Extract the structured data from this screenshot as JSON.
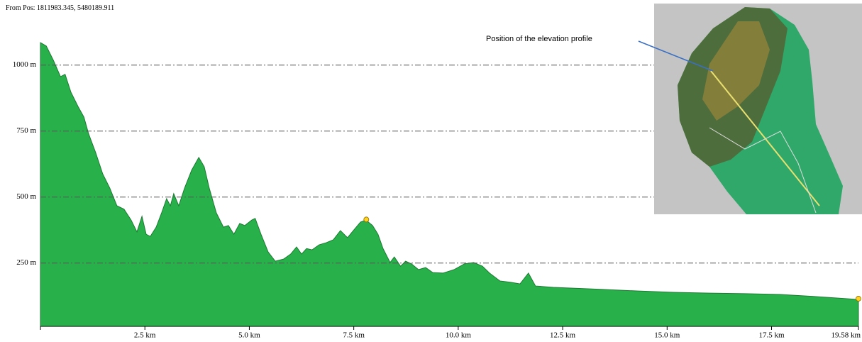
{
  "chart_data": {
    "type": "area",
    "title": "From Pos: 1811983.345, 5480189.911",
    "inset_label": "Position of the elevation profile",
    "color": "#28b04a",
    "x": [
      0,
      0.14,
      0.31,
      0.48,
      0.59,
      0.73,
      0.9,
      1.04,
      1.15,
      1.32,
      1.49,
      1.66,
      1.83,
      2.0,
      2.17,
      2.31,
      2.43,
      2.53,
      2.63,
      2.77,
      2.9,
      3.02,
      3.11,
      3.19,
      3.31,
      3.45,
      3.62,
      3.79,
      3.92,
      4.04,
      4.21,
      4.38,
      4.5,
      4.63,
      4.77,
      4.89,
      5.06,
      5.14,
      5.28,
      5.45,
      5.62,
      5.82,
      5.99,
      6.13,
      6.25,
      6.37,
      6.5,
      6.67,
      6.84,
      7.01,
      7.18,
      7.35,
      7.49,
      7.66,
      7.79,
      7.95,
      8.08,
      8.2,
      8.37,
      8.47,
      8.62,
      8.74,
      8.88,
      9.05,
      9.22,
      9.39,
      9.64,
      9.9,
      10.15,
      10.37,
      10.58,
      10.75,
      11.0,
      11.26,
      11.48,
      11.68,
      11.85,
      12.28,
      13.46,
      14.31,
      15.16,
      16.01,
      16.86,
      17.71,
      18.56,
      19.58
    ],
    "values": [
      1085,
      1072,
      1018,
      956,
      965,
      897,
      843,
      803,
      741,
      669,
      588,
      534,
      467,
      454,
      413,
      368,
      427,
      359,
      351,
      386,
      440,
      494,
      467,
      513,
      467,
      534,
      602,
      650,
      615,
      534,
      440,
      386,
      392,
      359,
      400,
      392,
      413,
      419,
      359,
      292,
      257,
      265,
      284,
      311,
      284,
      305,
      300,
      319,
      327,
      338,
      373,
      346,
      373,
      405,
      413,
      392,
      359,
      305,
      252,
      273,
      238,
      257,
      247,
      225,
      233,
      214,
      212,
      225,
      247,
      252,
      238,
      212,
      182,
      177,
      171,
      212,
      163,
      158,
      150,
      144,
      139,
      136,
      134,
      131,
      123,
      112
    ],
    "markers": {
      "x": [
        7.8,
        19.58
      ],
      "values": [
        415,
        115
      ],
      "color": "#ffd21f"
    },
    "xlim": [
      0,
      19.58
    ],
    "xticks": [
      {
        "value": 2.5,
        "label": "2.5 km"
      },
      {
        "value": 5.0,
        "label": "5.0 km"
      },
      {
        "value": 7.5,
        "label": "7.5 km"
      },
      {
        "value": 10.0,
        "label": "10.0 km"
      },
      {
        "value": 12.5,
        "label": "12.5 km"
      },
      {
        "value": 15.0,
        "label": "15.0 km"
      },
      {
        "value": 17.5,
        "label": "17.5 km"
      },
      {
        "value": 19.58,
        "label": "19.58 km"
      }
    ],
    "ylim": [
      10,
      1100
    ],
    "yticks": [
      {
        "value": 250,
        "label": "250 m"
      },
      {
        "value": 500,
        "label": "500 m"
      },
      {
        "value": 750,
        "label": "750 m"
      },
      {
        "value": 1000,
        "label": "1000 m"
      }
    ],
    "grid": true
  }
}
